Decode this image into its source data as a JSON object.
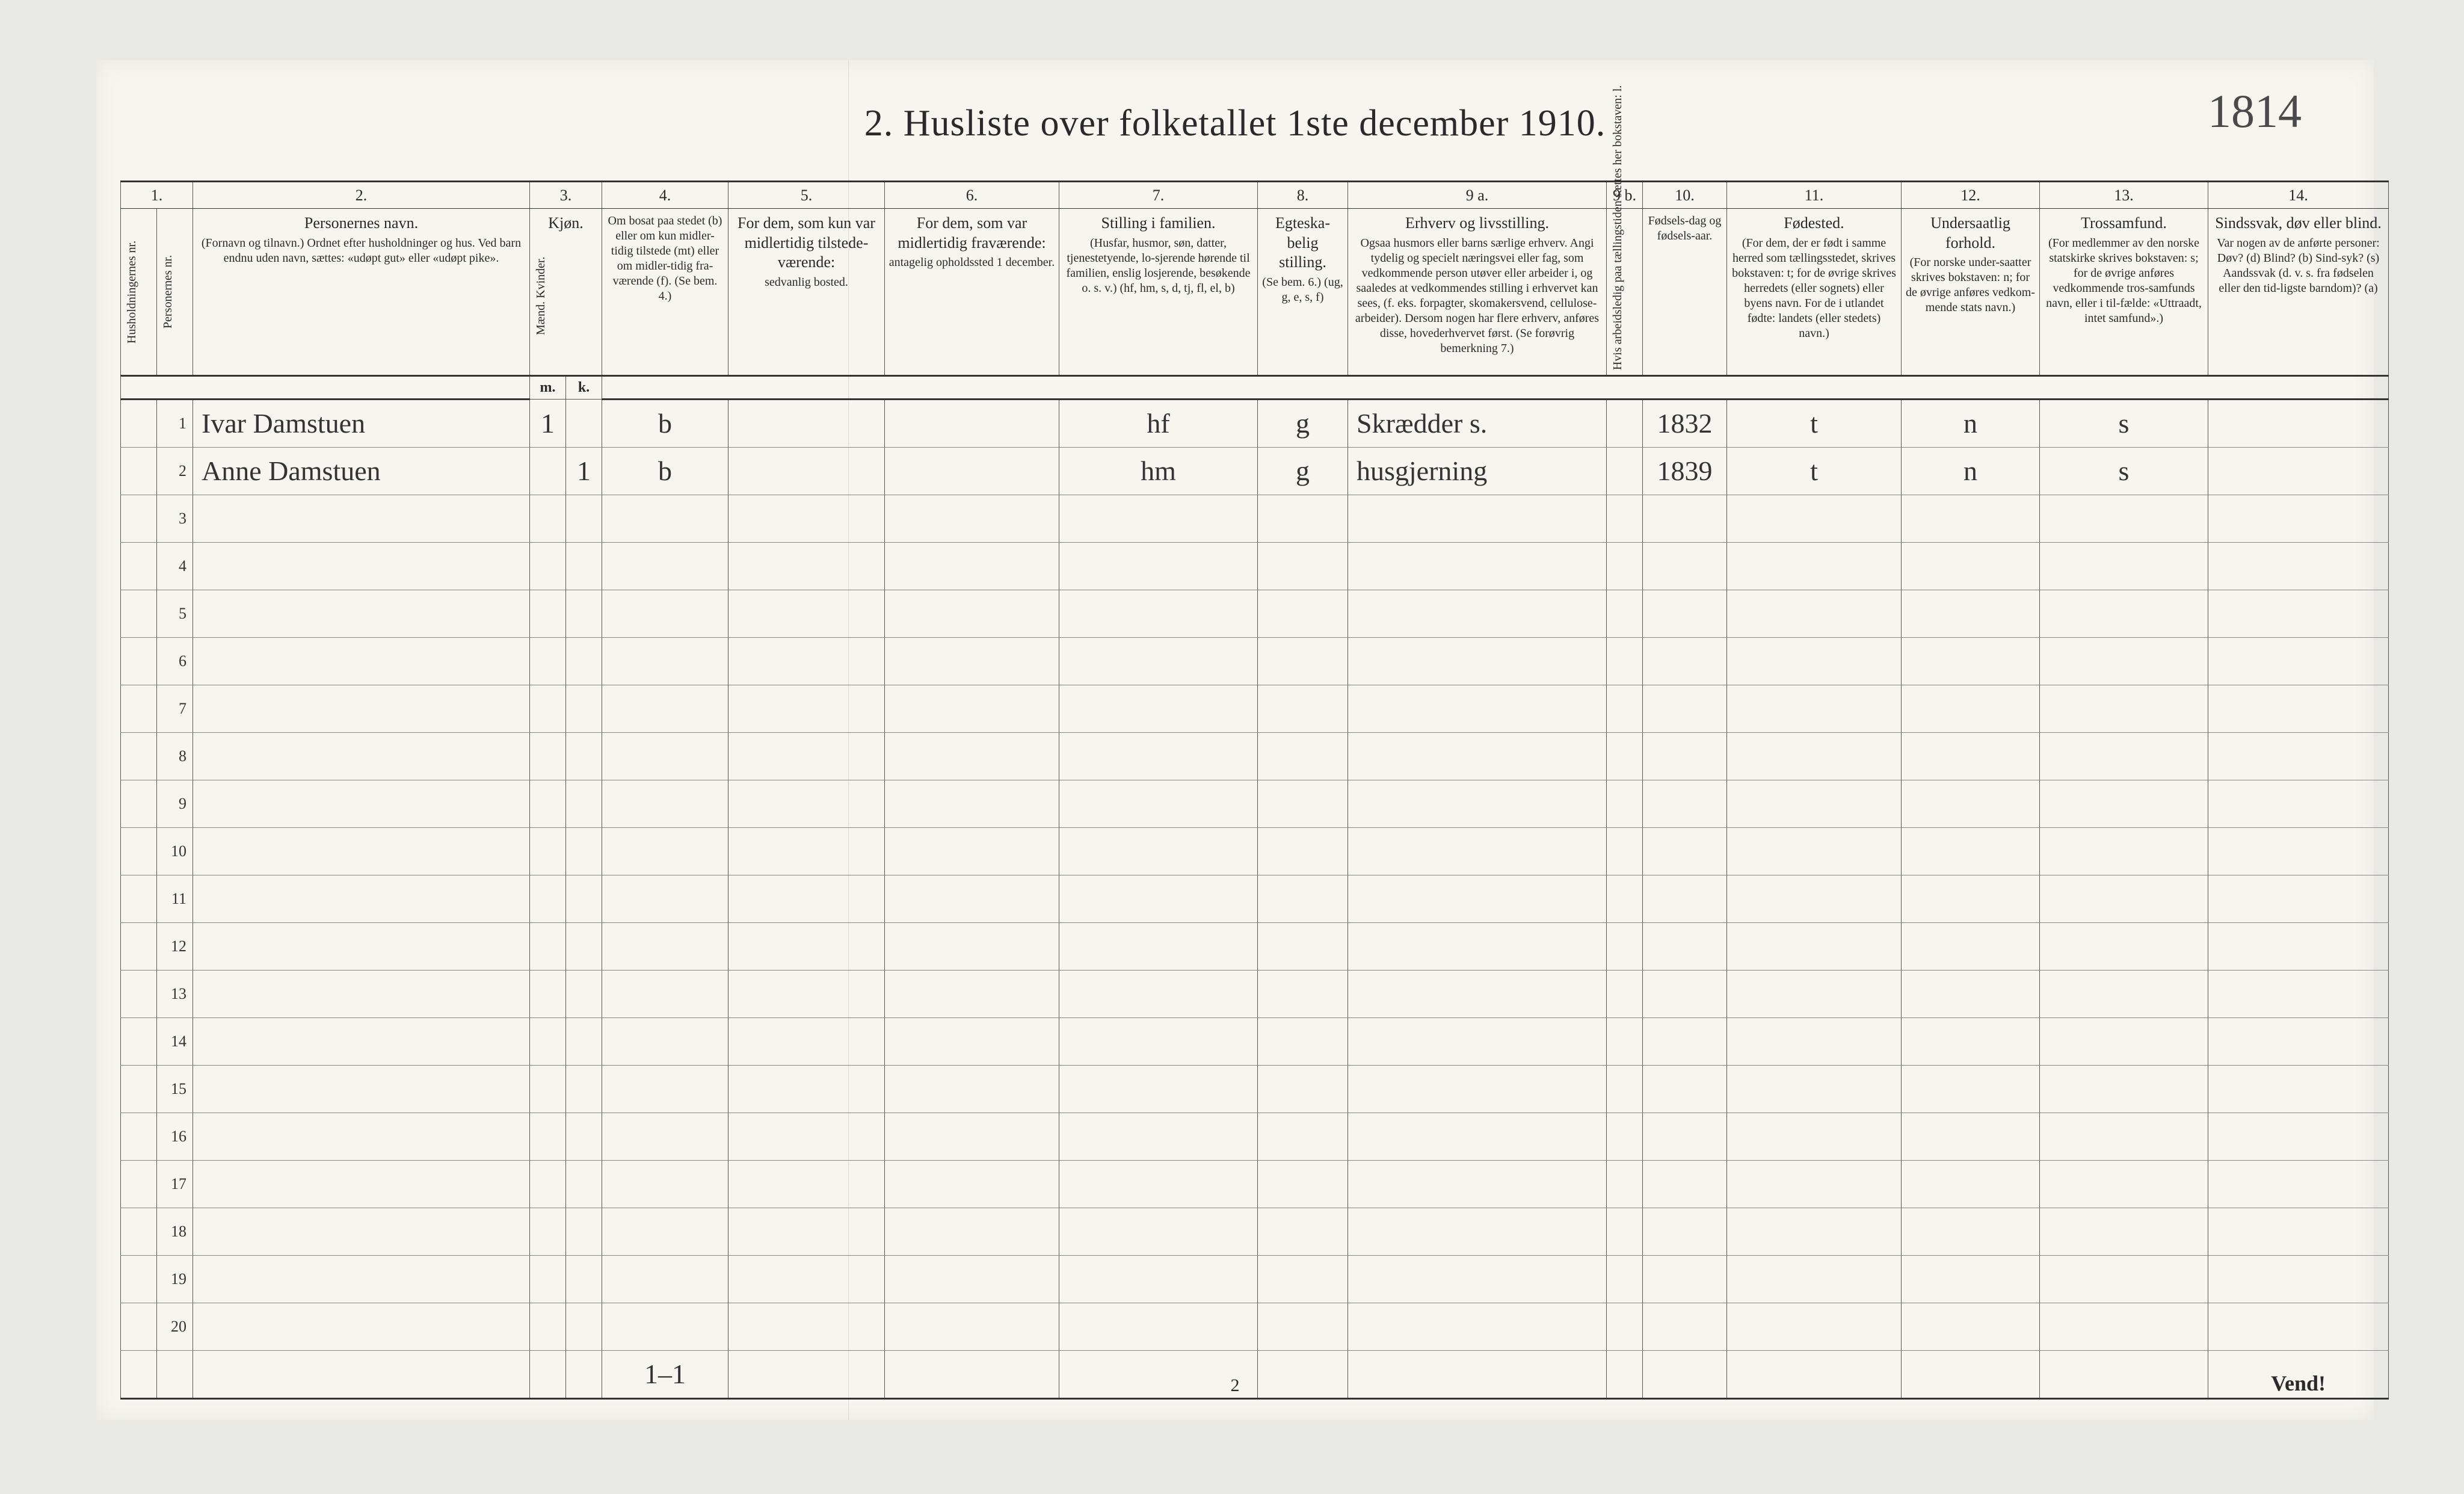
{
  "title": "2.  Husliste over folketallet 1ste december 1910.",
  "handnote_top": "1814",
  "page_number": "2",
  "vend": "Vend!",
  "footer_tally": "1–1",
  "colnums": [
    "1.",
    "2.",
    "3.",
    "4.",
    "5.",
    "6.",
    "7.",
    "8.",
    "9 a.",
    "9 b.",
    "10.",
    "11.",
    "12.",
    "13.",
    "14."
  ],
  "headers": {
    "c1a": "Husholdningernes nr.",
    "c1b": "Personernes nr.",
    "c2_title": "Personernes navn.",
    "c2_sub": "(Fornavn og tilnavn.) Ordnet efter husholdninger og hus. Ved barn endnu uden navn, sættes: «udøpt gut» eller «udøpt pike».",
    "c3_title": "Kjøn.",
    "c3_sub": "Mænd. Kvinder.",
    "c3_mk_m": "m.",
    "c3_mk_k": "k.",
    "c4_title": "Om bosat paa stedet (b) eller om kun midler-tidig tilstede (mt) eller om midler-tidig fra-værende (f). (Se bem. 4.)",
    "c5_title": "For dem, som kun var midlertidig tilstede-værende:",
    "c5_sub": "sedvanlig bosted.",
    "c6_title": "For dem, som var midlertidig fraværende:",
    "c6_sub": "antagelig opholdssted 1 december.",
    "c7_title": "Stilling i familien.",
    "c7_sub": "(Husfar, husmor, søn, datter, tjenestetyende, lo-sjerende hørende til familien, enslig losjerende, besøkende o. s. v.) (hf, hm, s, d, tj, fl, el, b)",
    "c8_title": "Egteska-belig stilling.",
    "c8_sub": "(Se bem. 6.) (ug, g, e, s, f)",
    "c9_title": "Erhverv og livsstilling.",
    "c9_sub": "Ogsaa husmors eller barns særlige erhverv. Angi tydelig og specielt næringsvei eller fag, som vedkommende person utøver eller arbeider i, og saaledes at vedkommendes stilling i erhvervet kan sees, (f. eks. forpagter, skomakersvend, cellulose-arbeider). Dersom nogen har flere erhverv, anføres disse, hovederhvervet først. (Se forøvrig bemerkning 7.)",
    "c9b": "Hvis arbeidsledig paa tællingstiden sættes her bokstaven: l.",
    "c10_title": "Fødsels-dag og fødsels-aar.",
    "c11_title": "Fødested.",
    "c11_sub": "(For dem, der er født i samme herred som tællingsstedet, skrives bokstaven: t; for de øvrige skrives herredets (eller sognets) eller byens navn. For de i utlandet fødte: landets (eller stedets) navn.)",
    "c12_title": "Undersaatlig forhold.",
    "c12_sub": "(For norske under-saatter skrives bokstaven: n; for de øvrige anføres vedkom-mende stats navn.)",
    "c13_title": "Trossamfund.",
    "c13_sub": "(For medlemmer av den norske statskirke skrives bokstaven: s; for de øvrige anføres vedkommende tros-samfunds navn, eller i til-fælde: «Uttraadt, intet samfund».)",
    "c14_title": "Sindssvak, døv eller blind.",
    "c14_sub": "Var nogen av de anførte personer: Døv? (d) Blind? (b) Sind-syk? (s) Aandssvak (d. v. s. fra fødselen eller den tid-ligste barndom)? (a)"
  },
  "rows": [
    {
      "n": "1",
      "name": "Ivar Damstuen",
      "m": "1",
      "k": "",
      "bosat": "b",
      "c5": "",
      "c6": "",
      "stilling": "hf",
      "egte": "g",
      "erhverv": "Skrædder s.",
      "c9b": "",
      "fodsel": "1832",
      "fodested": "t",
      "undersaat": "n",
      "tros": "s",
      "c14": ""
    },
    {
      "n": "2",
      "name": "Anne Damstuen",
      "m": "",
      "k": "1",
      "bosat": "b",
      "c5": "",
      "c6": "",
      "stilling": "hm",
      "egte": "g",
      "erhverv": "husgjerning",
      "c9b": "",
      "fodsel": "1839",
      "fodested": "t",
      "undersaat": "n",
      "tros": "s",
      "c14": ""
    }
  ],
  "blank_row_count": 18,
  "colors": {
    "page_bg": "#f6f5ef",
    "desk_bg": "#e8e8e4",
    "rule": "#555555",
    "ink": "#2a2a2a",
    "hand_ink": "#333333"
  }
}
